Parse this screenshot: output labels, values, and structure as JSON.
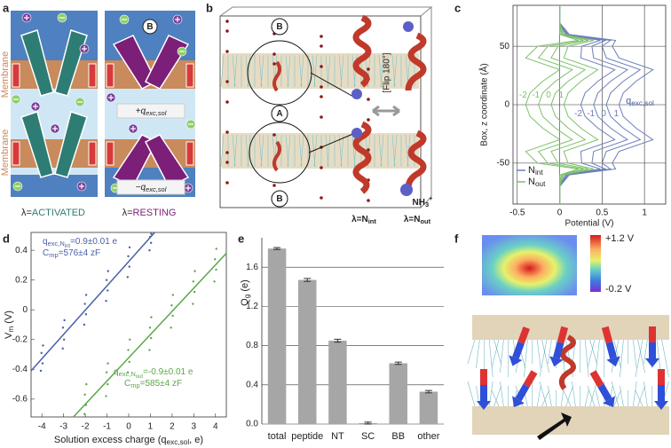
{
  "figure": {
    "panel_labels": [
      "a",
      "b",
      "c",
      "d",
      "e",
      "f"
    ],
    "a": {
      "membrane": "Membrane",
      "site": "B",
      "plus_charge": {
        "main": "+q",
        "sub": "exc,sol"
      },
      "minus_charge": {
        "main": "−q",
        "sub": "exc,sol"
      },
      "activated": {
        "prefix": "λ=",
        "state": "ACTIVATED",
        "color": "#2e7d74"
      },
      "resting": {
        "prefix": "λ=",
        "state": "RESTING",
        "color": "#7b1f78"
      }
    },
    "b": {
      "sites": [
        "B",
        "A",
        "B"
      ],
      "flip": "[Flip 180°]",
      "n_int": {
        "main": "λ=N",
        "sub": "int"
      },
      "n_out": {
        "main": "λ=N",
        "sub": "out"
      },
      "nh3": {
        "main": "NH",
        "sub": "3",
        "sup": "+"
      }
    },
    "f": {
      "colorbar_max": "+1.2 V",
      "colorbar_min": "-0.2 V"
    }
  },
  "chart_data": [
    {
      "type": "line",
      "xlabel": "Potential (V)",
      "ylabel": "Box, z coordinate (Å)",
      "z": [
        85,
        70,
        60,
        55,
        50,
        40,
        30,
        20,
        10,
        0,
        -10,
        -20,
        -30,
        -40,
        -50,
        -55,
        -60,
        -70,
        -85
      ],
      "xlim": [
        -0.55,
        1.25
      ],
      "xticks": [
        -0.5,
        0,
        0.5,
        1
      ],
      "ylim": [
        -85,
        85
      ],
      "yticks": [
        -50,
        0,
        50
      ],
      "grid": true,
      "legend": "lower left",
      "annotation": {
        "main": "q",
        "sub": "exc,sol"
      },
      "series": [
        {
          "name": "N",
          "name_sub": "int",
          "color": "#6a7fb8",
          "curve_labels": [
            -2,
            -1,
            0,
            1
          ],
          "curves": [
            [
              0,
              0,
              0.07,
              0.48,
              0.26,
              0.25,
              0.65,
              0.45,
              0.3,
              0.25,
              0.3,
              0.45,
              0.65,
              0.25,
              0.26,
              0.48,
              0.07,
              0,
              0
            ],
            [
              0,
              0,
              0.085,
              0.54,
              0.38,
              0.4,
              0.8,
              0.6,
              0.45,
              0.4,
              0.45,
              0.6,
              0.8,
              0.4,
              0.38,
              0.54,
              0.085,
              0,
              0
            ],
            [
              0,
              0,
              0.1,
              0.6,
              0.5,
              0.55,
              0.95,
              0.75,
              0.6,
              0.55,
              0.6,
              0.75,
              0.95,
              0.55,
              0.5,
              0.6,
              0.1,
              0,
              0
            ],
            [
              0,
              0,
              0.115,
              0.66,
              0.62,
              0.7,
              1.1,
              0.9,
              0.75,
              0.7,
              0.75,
              0.9,
              1.1,
              0.7,
              0.62,
              0.66,
              0.115,
              0,
              0
            ]
          ]
        },
        {
          "name": "N",
          "name_sub": "out",
          "color": "#7cc06a",
          "curve_labels": [
            -2,
            -1,
            0,
            1
          ],
          "curves": [
            [
              0,
              0,
              0.005,
              0.22,
              -0.26,
              -0.4,
              0,
              -0.2,
              -0.35,
              -0.4,
              -0.35,
              -0.2,
              0,
              -0.4,
              -0.26,
              0.22,
              0.005,
              0,
              0
            ],
            [
              0,
              0,
              0.02,
              0.28,
              -0.14,
              -0.25,
              0.15,
              -0.05,
              -0.2,
              -0.25,
              -0.2,
              -0.05,
              0.15,
              -0.25,
              -0.14,
              0.28,
              0.02,
              0,
              0
            ],
            [
              0,
              0,
              0.035,
              0.34,
              -0.02,
              -0.1,
              0.3,
              0.1,
              -0.05,
              -0.1,
              -0.05,
              0.1,
              0.3,
              -0.1,
              -0.02,
              0.34,
              0.035,
              0,
              0
            ],
            [
              0,
              0,
              0.05,
              0.4,
              0.1,
              0.05,
              0.45,
              0.25,
              0.1,
              0.05,
              0.1,
              0.25,
              0.45,
              0.05,
              0.1,
              0.4,
              0.05,
              0,
              0
            ]
          ]
        }
      ]
    },
    {
      "type": "scatter",
      "xlabel": {
        "main": "Solution excess charge (q",
        "sub": "exc,sol",
        "rest": ", e)"
      },
      "ylabel": {
        "main": "V",
        "sub": "m",
        "rest": " (V)"
      },
      "xlim": [
        -4.5,
        4.5
      ],
      "xticks": [
        -4,
        -3,
        -2,
        -1,
        0,
        1,
        2,
        3,
        4
      ],
      "ylim": [
        -0.72,
        0.52
      ],
      "yticks": [
        -0.6,
        -0.4,
        -0.2,
        0,
        0.2,
        0.4
      ],
      "grid": false,
      "series": [
        {
          "color": "#4a5fa8",
          "x": [
            -4.05,
            -3.97,
            -4.02,
            -3.95,
            -3.04,
            -2.98,
            -3.03,
            -2.96,
            -2.05,
            -1.97,
            -2.02,
            -1.96,
            -1.04,
            -0.97,
            -1.02,
            -0.95,
            -0.05,
            0.03,
            -0.02,
            0.04,
            0.96,
            1.03,
            0.98,
            1.04
          ],
          "values": [
            -0.41,
            -0.36,
            -0.29,
            -0.24,
            -0.26,
            -0.2,
            -0.12,
            -0.07,
            -0.1,
            -0.03,
            0.04,
            0.1,
            0.06,
            0.13,
            0.2,
            0.26,
            0.22,
            0.29,
            0.36,
            0.42,
            0.4,
            0.45,
            0.49,
            0.51
          ]
        },
        {
          "color": "#5aa848",
          "x": [
            -2.04,
            -1.97,
            -2.02,
            -1.95,
            -1.04,
            -0.97,
            -1.02,
            -0.96,
            -0.04,
            0.03,
            -0.02,
            0.05,
            0.96,
            1.03,
            0.98,
            1.04,
            1.95,
            2.03,
            1.98,
            2.04,
            2.96,
            3.03,
            2.98,
            3.05,
            3.95,
            4.03,
            3.98,
            4.04
          ],
          "values": [
            -0.7,
            -0.64,
            -0.57,
            -0.5,
            -0.58,
            -0.5,
            -0.42,
            -0.36,
            -0.42,
            -0.35,
            -0.27,
            -0.2,
            -0.27,
            -0.19,
            -0.12,
            -0.05,
            -0.12,
            -0.04,
            0.03,
            0.1,
            0.04,
            0.12,
            0.19,
            0.26,
            0.19,
            0.27,
            0.34,
            0.41
          ]
        }
      ],
      "fits": [
        {
          "color": "#4a5fa8",
          "x": [
            -4.5,
            1.2
          ],
          "values": [
            -0.41,
            0.52
          ]
        },
        {
          "color": "#5aa848",
          "x": [
            -2.55,
            4.5
          ],
          "values": [
            -0.72,
            0.38
          ]
        }
      ],
      "annotations": [
        {
          "main": "q",
          "sub": "exc,N",
          "subsub": "int",
          "rest": "=0.9±0.01 e",
          "color": "#4a5fa8"
        },
        {
          "main": "C",
          "sub": "mp",
          "rest": "=576±4 zF",
          "color": "#4a5fa8"
        },
        {
          "main": "q",
          "sub": "exc,N",
          "subsub": "out",
          "rest": "=-0.9±0.01 e",
          "color": "#5aa848"
        },
        {
          "main": "C",
          "sub": "mp",
          "rest": "=585±4 zF",
          "color": "#5aa848"
        }
      ]
    },
    {
      "type": "bar",
      "ylabel": {
        "main": "Q",
        "sub": "g",
        "rest": " (e)"
      },
      "categories": [
        "total",
        "peptide",
        "NT",
        "SC",
        "BB",
        "other"
      ],
      "values": [
        1.79,
        1.47,
        0.85,
        0.01,
        0.62,
        0.33
      ],
      "errors": [
        0.01,
        0.015,
        0.015,
        0.01,
        0.012,
        0.012
      ],
      "color": "#a6a6a6",
      "ylim": [
        0,
        1.9
      ],
      "yticks": [
        {
          "value": 0,
          "label": "0.0"
        },
        0.4,
        0.8,
        1.2,
        1.6
      ],
      "grid": true
    }
  ]
}
